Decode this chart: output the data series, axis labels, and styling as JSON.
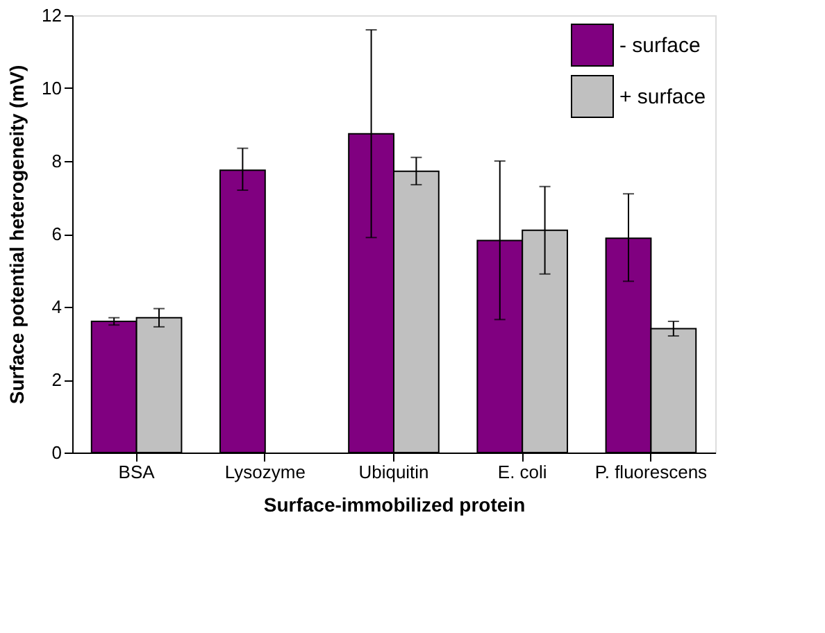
{
  "chart_data": {
    "type": "bar",
    "xlabel": "Surface-immobilized protein",
    "ylabel": "Surface potential heterogeneity (mV)",
    "categories": [
      "BSA",
      "Lysozyme",
      "Ubiquitin",
      "E. coli",
      "P. fluorescens"
    ],
    "series": [
      {
        "name": "- surface",
        "color": "#800080",
        "values": [
          3.6,
          7.75,
          8.75,
          5.82,
          5.88
        ],
        "errors": [
          0.1,
          [
            7.2,
            8.35
          ],
          [
            5.9,
            11.6
          ],
          [
            3.65,
            8.0
          ],
          [
            4.7,
            7.1
          ]
        ]
      },
      {
        "name": "+ surface",
        "color": "#c0c0c0",
        "values": [
          3.7,
          null,
          7.72,
          6.1,
          3.4
        ],
        "errors": [
          0.25,
          null,
          [
            7.35,
            8.1
          ],
          [
            4.9,
            7.3
          ],
          [
            3.2,
            3.6
          ]
        ]
      }
    ],
    "ylim": [
      0,
      12
    ],
    "yticks": [
      0,
      2,
      4,
      6,
      8,
      10,
      12
    ],
    "legend": "top right",
    "grid": false
  }
}
